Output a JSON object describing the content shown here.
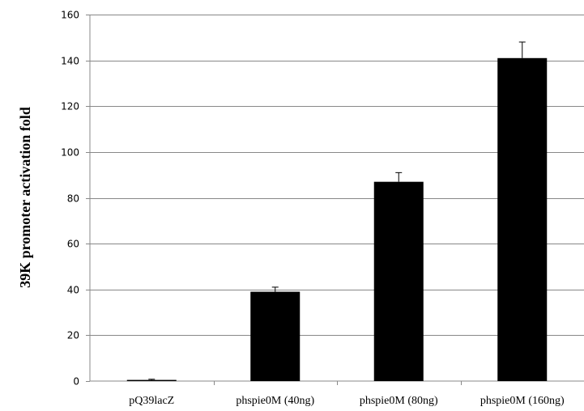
{
  "chart_data": {
    "type": "bar",
    "title": "",
    "xlabel": "",
    "ylabel": "39K promoter activation fold",
    "categories": [
      "pQ39lacZ",
      "phspie0M (40ng)",
      "phspie0M (80ng)",
      "phspie0M (160ng)"
    ],
    "values": [
      0.5,
      39,
      87,
      141
    ],
    "errors": [
      0.3,
      2,
      4,
      7
    ],
    "ylim": [
      0,
      160
    ],
    "yticks": [
      0,
      20,
      40,
      60,
      80,
      100,
      120,
      140,
      160
    ],
    "ytick_labels": [
      "0",
      "20",
      "40",
      "60",
      "80",
      "100",
      "120",
      "140",
      "160"
    ],
    "grid": true,
    "legend": "none",
    "colors": {
      "bar": "#000000",
      "grid": "#888888",
      "axis": "#888888"
    }
  }
}
